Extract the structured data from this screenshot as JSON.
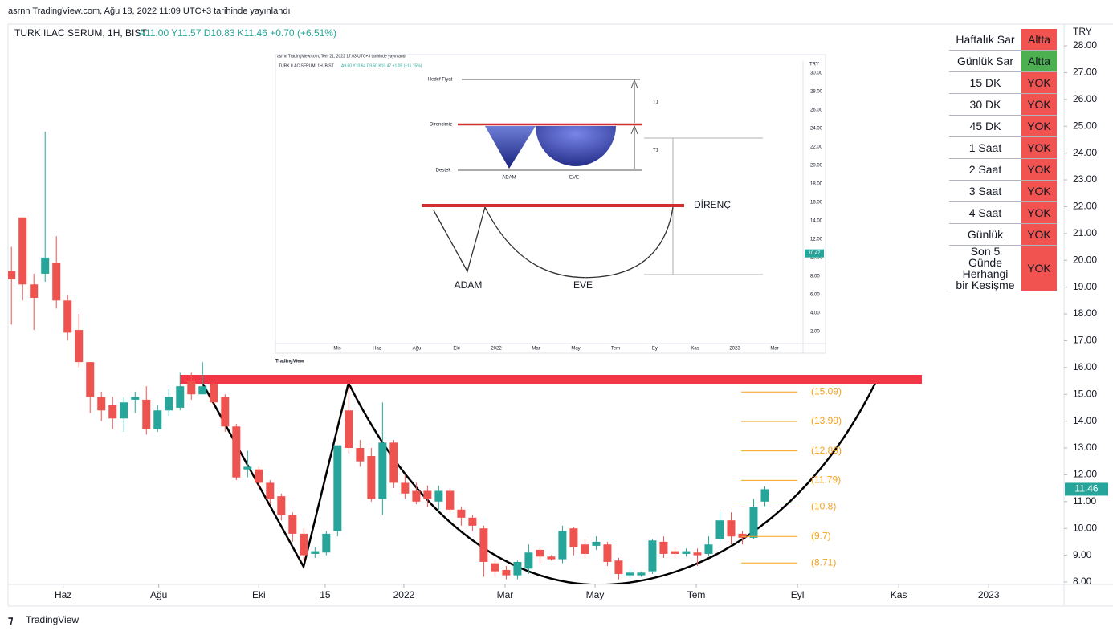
{
  "header": {
    "published": "asrnn TradingView.com, Ağu 18, 2022 11:09 UTC+3 tarihinde yayınlandı",
    "symbol": "TURK ILAC SERUM, 1H, BIST",
    "ohlc": "A11.00 Y11.57 D10.83 K11.46 +0.70 (+6.51%)",
    "currency": "TRY",
    "brand": "TradingView"
  },
  "chart_data": {
    "type": "candlestick",
    "up_color": "#26a69a",
    "down_color": "#ef5350",
    "open": [
      19.6,
      21.6,
      19.1,
      19.5,
      19.9,
      18.5,
      17.4,
      16.2,
      14.9,
      14.6,
      14.1,
      14.8,
      14.8,
      13.7,
      14.4,
      14.5,
      15.5,
      15.0,
      15.4,
      14.9,
      13.8,
      12.2,
      12.2,
      11.7,
      11.2,
      10.5,
      9.8,
      9.05,
      9.1,
      9.9,
      14.4,
      13.0,
      12.7,
      11.1,
      13.2,
      11.7,
      11.4,
      11.4,
      11.0,
      11.4,
      10.7,
      10.4,
      10.0,
      8.7,
      8.45,
      8.25,
      8.5,
      9.2,
      8.95,
      8.85,
      10.0,
      9.4,
      9.35,
      9.4,
      8.8,
      8.25,
      8.25,
      8.4,
      9.5,
      9.15,
      9.05,
      9.1,
      9.05,
      9.6,
      10.3,
      9.8,
      9.65,
      11.0
    ],
    "high": [
      20.5,
      21.6,
      19.5,
      24.8,
      20.9,
      18.7,
      18.0,
      16.2,
      15.1,
      14.9,
      14.9,
      15.1,
      15.3,
      14.6,
      15.2,
      15.8,
      15.8,
      16.2,
      15.6,
      15.0,
      13.9,
      12.9,
      12.3,
      11.8,
      11.3,
      10.6,
      10.0,
      9.3,
      9.9,
      13.1,
      15.3,
      13.3,
      13.0,
      14.7,
      13.3,
      12.0,
      11.7,
      11.6,
      11.6,
      11.5,
      10.8,
      10.5,
      10.1,
      8.8,
      8.6,
      8.8,
      9.4,
      9.3,
      9.0,
      10.1,
      10.05,
      9.6,
      9.7,
      9.5,
      8.9,
      8.5,
      8.4,
      9.6,
      9.7,
      9.3,
      9.25,
      9.25,
      9.7,
      10.6,
      10.6,
      9.9,
      11.1,
      11.57
    ],
    "low": [
      17.6,
      18.5,
      17.4,
      19.2,
      18.2,
      17.0,
      16.0,
      14.3,
      14.0,
      13.7,
      13.6,
      14.3,
      13.5,
      13.6,
      14.2,
      14.4,
      14.8,
      15.0,
      14.6,
      13.6,
      11.8,
      11.9,
      11.5,
      10.9,
      10.3,
      9.5,
      8.8,
      8.9,
      9.0,
      9.7,
      12.8,
      12.3,
      11.0,
      10.5,
      11.5,
      11.1,
      10.9,
      10.8,
      10.7,
      10.6,
      10.1,
      9.9,
      8.2,
      8.2,
      8.1,
      8.1,
      8.3,
      8.7,
      8.8,
      8.7,
      9.0,
      8.9,
      9.2,
      8.6,
      8.1,
      8.15,
      8.2,
      8.3,
      8.9,
      8.9,
      8.95,
      8.6,
      8.95,
      9.5,
      9.4,
      9.4,
      9.6,
      10.83
    ],
    "close": [
      19.3,
      19.1,
      18.6,
      20.1,
      18.5,
      17.3,
      16.2,
      14.9,
      14.4,
      14.1,
      14.7,
      14.9,
      13.7,
      14.4,
      14.9,
      15.3,
      15.0,
      15.3,
      14.7,
      13.8,
      11.9,
      12.3,
      11.7,
      11.1,
      10.5,
      9.8,
      9.0,
      9.15,
      9.8,
      13.1,
      13.0,
      12.5,
      11.1,
      13.2,
      11.7,
      11.3,
      11.0,
      11.1,
      11.4,
      10.7,
      10.4,
      10.1,
      8.75,
      8.4,
      8.25,
      8.75,
      9.1,
      8.95,
      8.85,
      9.9,
      9.3,
      9.05,
      9.5,
      8.75,
      8.3,
      8.35,
      8.35,
      9.55,
      9.05,
      9.05,
      9.15,
      9.0,
      9.4,
      10.3,
      9.7,
      9.65,
      10.8,
      11.46
    ],
    "xlim": [
      -0.3,
      93.6
    ],
    "xticks": [
      {
        "value": 4.6,
        "label": "Haz"
      },
      {
        "value": 13.1,
        "label": "Ağu"
      },
      {
        "value": 22,
        "label": "Eki"
      },
      {
        "value": 27.9,
        "label": "15"
      },
      {
        "value": 34.9,
        "label": "2022"
      },
      {
        "value": 43.9,
        "label": "Mar"
      },
      {
        "value": 51.9,
        "label": "May"
      },
      {
        "value": 60.9,
        "label": "Tem"
      },
      {
        "value": 69.9,
        "label": "Eyl"
      },
      {
        "value": 78.9,
        "label": "Kas"
      },
      {
        "value": 86.9,
        "label": "2023"
      }
    ],
    "ylim": [
      7.91,
      28.81
    ],
    "yticks": [
      {
        "value": 8,
        "label": "8.00"
      },
      {
        "value": 9,
        "label": "9.00"
      },
      {
        "value": 10,
        "label": "10.00"
      },
      {
        "value": 11,
        "label": "11.00"
      },
      {
        "value": 12,
        "label": "12.00"
      },
      {
        "value": 13,
        "label": "13.00"
      },
      {
        "value": 14,
        "label": "14.00"
      },
      {
        "value": 15,
        "label": "15.00"
      },
      {
        "value": 16,
        "label": "16.00"
      },
      {
        "value": 17,
        "label": "17.00"
      },
      {
        "value": 18,
        "label": "18.00"
      },
      {
        "value": 19,
        "label": "19.00"
      },
      {
        "value": 20,
        "label": "20.00"
      },
      {
        "value": 21,
        "label": "21.00"
      },
      {
        "value": 22,
        "label": "22.00"
      },
      {
        "value": 23,
        "label": "23.00"
      },
      {
        "value": 24,
        "label": "24.00"
      },
      {
        "value": 25,
        "label": "25.00"
      },
      {
        "value": 26,
        "label": "26.00"
      },
      {
        "value": 27,
        "label": "27.00"
      },
      {
        "value": 28,
        "label": "28.00"
      }
    ],
    "last_price": 11.46,
    "levels": {
      "color": "#f7a21b",
      "values": [
        15.09,
        13.99,
        12.89,
        11.79,
        10.8,
        9.7,
        8.71
      ],
      "value_labels": [
        "(15.09)",
        "(13.99)",
        "(12.89)",
        "(11.79)",
        "(10.8)",
        "(9.7)",
        "(8.71)"
      ]
    }
  },
  "table": {
    "rows": [
      [
        "Haftalık Sar",
        "Altta"
      ],
      [
        "Günlük Sar",
        "Altta"
      ],
      [
        "15 DK",
        "YOK"
      ],
      [
        "30 DK",
        "YOK"
      ],
      [
        "45 DK",
        "YOK"
      ],
      [
        "1 Saat",
        "YOK"
      ],
      [
        "2 Saat",
        "YOK"
      ],
      [
        "3 Saat",
        "YOK"
      ],
      [
        "4 Saat",
        "YOK"
      ],
      [
        "Günlük",
        "YOK"
      ],
      [
        "Son 5 Günde Herhangi bir Kesişme",
        "YOK"
      ]
    ],
    "status_colors": [
      "#f05350",
      "#4caf50",
      "#f05350",
      "#f05350",
      "#f05350",
      "#f05350",
      "#f05350",
      "#f05350",
      "#f05350",
      "#f05350",
      "#f05350"
    ]
  },
  "inset": {
    "published": "asrnn TradingView.com, Tem 21, 2022 17:03 UTC+3 tarihinde yayınlandı",
    "symbol": "TURK ILAC SERUM, 1H, BIST",
    "ohlc": "A9.60 Y10.64 D9.50 K10.47 +1.05 (+11.15%)",
    "currency": "TRY",
    "ylim": [
      0.7,
      31.4
    ],
    "yticks": [
      {
        "value": 30,
        "label": "30.00"
      },
      {
        "value": 28,
        "label": "28.00"
      },
      {
        "value": 26,
        "label": "26.00"
      },
      {
        "value": 24,
        "label": "24.00"
      },
      {
        "value": 22,
        "label": "22.00"
      },
      {
        "value": 20,
        "label": "20.00"
      },
      {
        "value": 18,
        "label": "18.00"
      },
      {
        "value": 16,
        "label": "16.00"
      },
      {
        "value": 14,
        "label": "14.00"
      },
      {
        "value": 12,
        "label": "12.00"
      },
      {
        "value": 10,
        "label": "10.00"
      },
      {
        "value": 8,
        "label": "8.00"
      },
      {
        "value": 6,
        "label": "6.00"
      },
      {
        "value": 4,
        "label": "4.00"
      },
      {
        "value": 2,
        "label": "2.00"
      }
    ],
    "xlabels": [
      "Mis",
      "Haz",
      "Ağu",
      "Eki",
      "2022",
      "Mar",
      "May",
      "Tem",
      "Eyl",
      "Kas",
      "2023",
      "Mar"
    ],
    "last_price": 10.47,
    "diagram": {
      "target": "Hedef Fiyat",
      "resistance": "Direncimiz",
      "support": "Destek",
      "head": "ADAM",
      "cup": "EVE",
      "t_labels": [
        "T1",
        "T1"
      ]
    },
    "pattern": {
      "head": "ADAM",
      "cup": "EVE",
      "resistance": "DİRENÇ"
    },
    "brand": "TradingView"
  }
}
